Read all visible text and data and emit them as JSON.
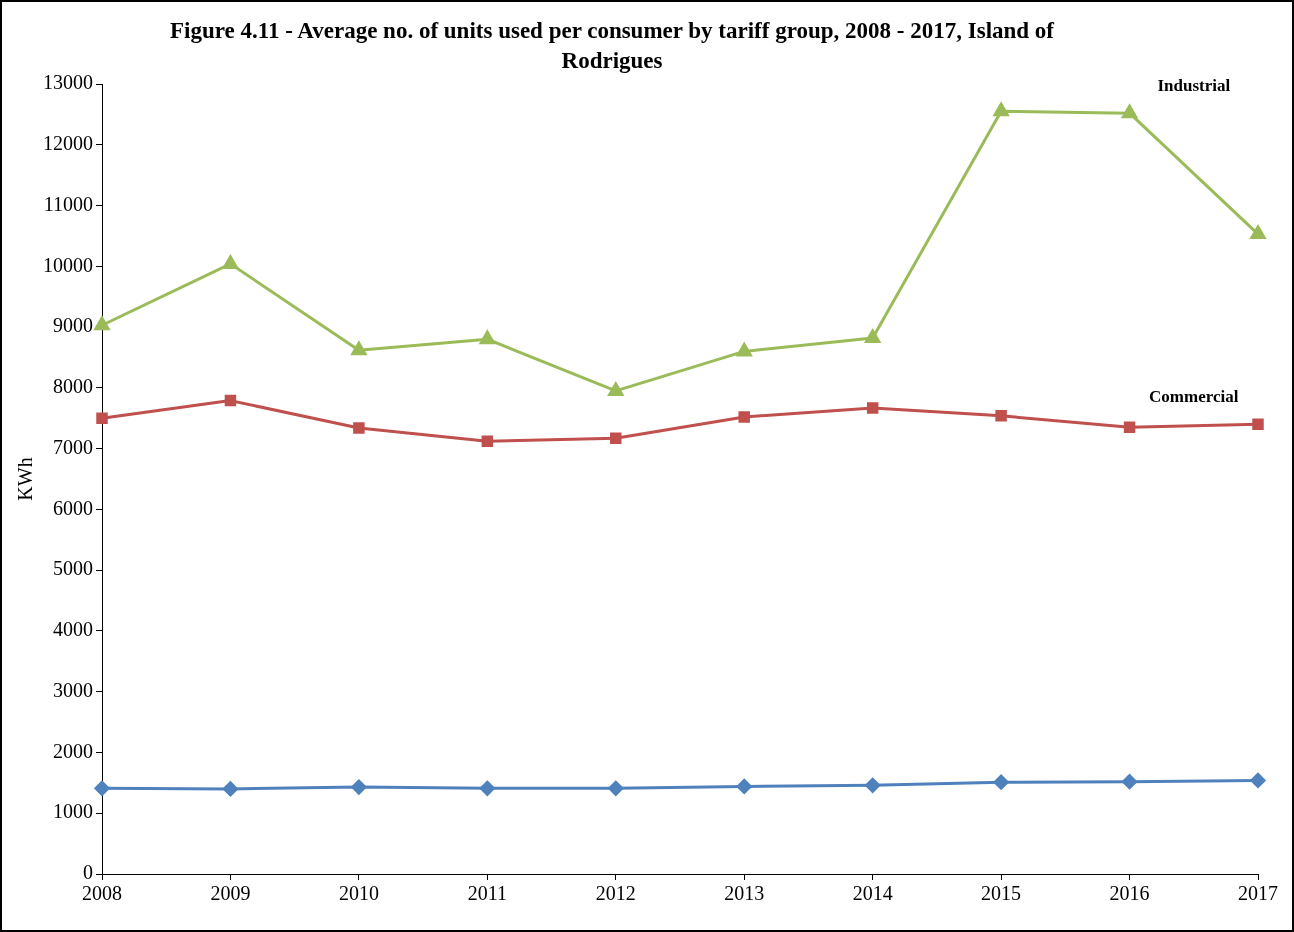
{
  "chart_data": {
    "type": "line",
    "title": "Figure 4.11 - Average no. of units used per consumer by tariff group, 2008 - 2017, Island of Rodrigues",
    "ylabel": "KWh",
    "categories": [
      "2008",
      "2009",
      "2010",
      "2011",
      "2012",
      "2013",
      "2014",
      "2015",
      "2016",
      "2017"
    ],
    "ylim": [
      0,
      13000
    ],
    "yticks": [
      0,
      1000,
      2000,
      3000,
      4000,
      5000,
      6000,
      7000,
      8000,
      9000,
      10000,
      11000,
      12000,
      13000
    ],
    "grid": false,
    "legend": false,
    "line_style": "solid",
    "series": [
      {
        "name": "Industrial",
        "color": "#9bbb59",
        "marker": "triangle",
        "values": [
          9030,
          10040,
          8620,
          8800,
          7950,
          8600,
          8820,
          12550,
          12520,
          10530
        ]
      },
      {
        "name": "Commercial",
        "color": "#c0504d",
        "marker": "square",
        "values": [
          7500,
          7790,
          7340,
          7120,
          7170,
          7520,
          7670,
          7540,
          7350,
          7400
        ]
      },
      {
        "color": "#4f81bd",
        "marker": "diamond",
        "values": [
          1410,
          1400,
          1430,
          1410,
          1410,
          1440,
          1460,
          1510,
          1520,
          1540
        ]
      }
    ]
  }
}
